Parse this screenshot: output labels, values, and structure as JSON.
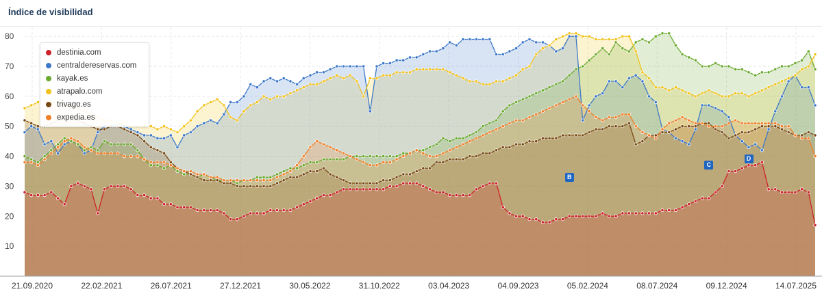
{
  "title": "Índice de visibilidad",
  "chart_data": {
    "type": "area",
    "ylim": [
      0,
      83
    ],
    "yticks": [
      10,
      20,
      30,
      40,
      50,
      60,
      70,
      80
    ],
    "xlabels": [
      "21.09.2020",
      "22.02.2021",
      "26.07.2021",
      "27.12.2021",
      "30.05.2022",
      "31.10.2022",
      "03.04.2023",
      "04.09.2023",
      "05.02.2024",
      "08.07.2024",
      "09.12.2024",
      "14.07.2025"
    ],
    "series": [
      {
        "name": "destinia.com",
        "color": "#cc2229",
        "values": [
          28,
          27,
          27,
          27,
          28,
          26,
          24,
          30,
          31,
          30,
          29,
          21,
          29,
          30,
          30,
          30,
          29,
          27,
          27,
          26,
          26,
          24,
          24,
          23,
          23,
          23,
          22,
          22,
          22,
          22,
          21,
          19,
          19,
          20,
          21,
          21,
          21,
          22,
          22,
          22,
          22,
          23,
          24,
          25,
          26,
          27,
          27,
          28,
          29,
          29,
          29,
          29,
          29,
          29,
          29,
          30,
          30,
          31,
          31,
          31,
          30,
          29,
          28,
          28,
          27,
          27,
          27,
          27,
          29,
          30,
          31,
          31,
          23,
          21,
          20,
          20,
          19,
          19,
          18,
          18,
          19,
          19,
          20,
          20,
          20,
          20,
          20,
          21,
          20,
          20,
          21,
          21,
          21,
          21,
          21,
          21,
          22,
          22,
          22,
          23,
          24,
          25,
          26,
          26,
          28,
          30,
          35,
          35,
          36,
          37,
          37,
          38,
          29,
          29,
          28,
          28,
          28,
          29,
          28,
          17
        ]
      },
      {
        "name": "centraldereservas.com",
        "color": "#3c78c8",
        "values": [
          48,
          50,
          49,
          44,
          45,
          41,
          44,
          45,
          44,
          41,
          42,
          48,
          50,
          50,
          51,
          50,
          49,
          48,
          47,
          47,
          46,
          46,
          47,
          43,
          47,
          48,
          50,
          51,
          52,
          51,
          54,
          58,
          58,
          60,
          64,
          63,
          65,
          66,
          65,
          66,
          65,
          64,
          66,
          67,
          68,
          68,
          69,
          70,
          70,
          70,
          70,
          70,
          55,
          70,
          71,
          71,
          72,
          72,
          73,
          73,
          74,
          75,
          75,
          76,
          78,
          77,
          79,
          79,
          79,
          79,
          79,
          74,
          74,
          75,
          76,
          78,
          79,
          78,
          78,
          77,
          75,
          76,
          80,
          80,
          52,
          57,
          60,
          61,
          65,
          65,
          63,
          66,
          67,
          65,
          60,
          58,
          49,
          48,
          46,
          45,
          44,
          49,
          57,
          57,
          56,
          55,
          53,
          47,
          45,
          43,
          44,
          42,
          49,
          55,
          60,
          65,
          67,
          63,
          63,
          57
        ]
      },
      {
        "name": "kayak.es",
        "color": "#6aaa2d",
        "values": [
          40,
          39,
          38,
          40,
          42,
          44,
          46,
          45,
          44,
          42,
          43,
          42,
          45,
          44,
          44,
          44,
          44,
          42,
          39,
          37,
          37,
          36,
          37,
          35,
          34,
          34,
          33,
          34,
          33,
          32,
          32,
          32,
          31,
          32,
          32,
          33,
          33,
          33,
          34,
          35,
          36,
          36,
          37,
          38,
          38,
          39,
          39,
          39,
          39,
          40,
          40,
          40,
          40,
          40,
          40,
          40,
          40,
          41,
          41,
          42,
          42,
          43,
          44,
          46,
          45,
          46,
          46,
          47,
          48,
          50,
          51,
          52,
          55,
          57,
          58,
          59,
          60,
          61,
          62,
          63,
          64,
          65,
          67,
          69,
          70,
          72,
          74,
          76,
          74,
          78,
          76,
          75,
          78,
          79,
          78,
          80,
          81,
          81,
          77,
          74,
          73,
          72,
          70,
          70,
          71,
          70,
          70,
          69,
          69,
          68,
          67,
          68,
          68,
          69,
          70,
          70,
          71,
          72,
          75,
          69
        ]
      },
      {
        "name": "atrapalo.com",
        "color": "#f1c21b",
        "values": [
          56,
          57,
          58,
          59,
          58,
          58,
          57,
          57,
          56,
          55,
          54,
          53,
          52,
          52,
          51,
          51,
          50,
          50,
          50,
          50,
          49,
          50,
          49,
          48,
          50,
          52,
          55,
          57,
          58,
          59,
          57,
          53,
          52,
          55,
          57,
          58,
          60,
          59,
          60,
          60,
          61,
          62,
          63,
          64,
          64,
          65,
          66,
          67,
          66,
          67,
          65,
          60,
          66,
          66,
          67,
          67,
          68,
          68,
          68,
          69,
          69,
          69,
          69,
          69,
          68,
          67,
          66,
          65,
          65,
          64,
          64,
          65,
          65,
          66,
          67,
          69,
          70,
          74,
          76,
          77,
          79,
          80,
          81,
          81,
          80,
          80,
          79,
          79,
          79,
          79,
          80,
          80,
          75,
          68,
          66,
          63,
          63,
          62,
          63,
          62,
          61,
          60,
          61,
          62,
          61,
          60,
          60,
          61,
          61,
          60,
          61,
          62,
          63,
          64,
          65,
          66,
          67,
          69,
          70,
          74
        ]
      },
      {
        "name": "trivago.es",
        "color": "#7a4a14",
        "values": [
          52,
          51,
          50,
          50,
          51,
          52,
          53,
          53,
          52,
          51,
          50,
          49,
          49,
          50,
          50,
          49,
          48,
          47,
          45,
          43,
          42,
          41,
          38,
          36,
          35,
          34,
          33,
          32,
          32,
          32,
          31,
          31,
          30,
          30,
          30,
          30,
          30,
          30,
          31,
          32,
          33,
          33,
          34,
          35,
          35,
          36,
          34,
          33,
          32,
          31,
          31,
          31,
          31,
          31,
          32,
          32,
          33,
          34,
          34,
          35,
          36,
          36,
          38,
          38,
          39,
          39,
          39,
          40,
          40,
          41,
          41,
          42,
          43,
          43,
          44,
          44,
          45,
          45,
          46,
          46,
          46,
          47,
          47,
          47,
          47,
          48,
          49,
          49,
          50,
          50,
          50,
          51,
          44,
          45,
          47,
          47,
          48,
          48,
          49,
          50,
          50,
          50,
          51,
          51,
          49,
          48,
          46,
          47,
          48,
          48,
          49,
          50,
          50,
          50,
          49,
          48,
          47,
          47,
          48,
          47
        ]
      },
      {
        "name": "expedia.es",
        "color": "#f07f2a",
        "values": [
          38,
          38,
          37,
          39,
          41,
          43,
          45,
          46,
          45,
          43,
          42,
          41,
          41,
          41,
          41,
          40,
          40,
          40,
          39,
          38,
          38,
          38,
          37,
          36,
          35,
          35,
          34,
          34,
          33,
          33,
          32,
          32,
          32,
          32,
          32,
          32,
          32,
          32,
          33,
          34,
          35,
          37,
          40,
          43,
          45,
          44,
          43,
          42,
          41,
          40,
          39,
          38,
          37,
          37,
          38,
          38,
          39,
          40,
          41,
          42,
          41,
          40,
          40,
          41,
          42,
          43,
          44,
          45,
          46,
          47,
          48,
          49,
          50,
          51,
          52,
          52,
          53,
          54,
          55,
          56,
          57,
          58,
          59,
          60,
          57,
          55,
          53,
          52,
          53,
          53,
          54,
          54,
          50,
          48,
          47,
          46,
          49,
          51,
          52,
          53,
          52,
          51,
          51,
          50,
          50,
          50,
          51,
          52,
          51,
          51,
          51,
          51,
          51,
          51,
          50,
          50,
          47,
          46,
          46,
          40
        ]
      }
    ],
    "markers": [
      {
        "label": "B",
        "index": 82,
        "value": 33
      },
      {
        "label": "C",
        "index": 103,
        "value": 37
      },
      {
        "label": "D",
        "index": 109,
        "value": 39
      }
    ]
  }
}
